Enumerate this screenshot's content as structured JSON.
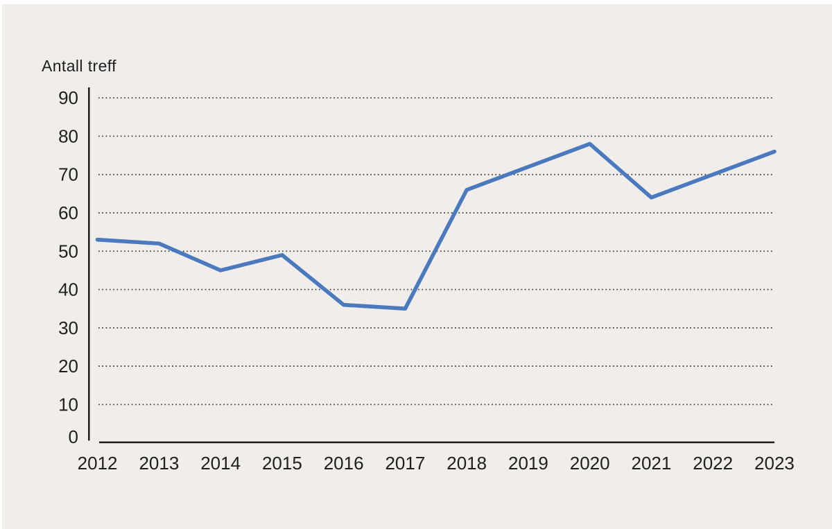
{
  "chart_data": {
    "type": "line",
    "title": "",
    "ylabel": "Antall treff",
    "xlabel": "",
    "categories": [
      "2012",
      "2013",
      "2014",
      "2015",
      "2016",
      "2017",
      "2018",
      "2019",
      "2020",
      "2021",
      "2022",
      "2023"
    ],
    "series": [
      {
        "name": "Antall treff",
        "values": [
          53,
          52,
          45,
          49,
          36,
          35,
          66,
          72,
          78,
          64,
          70,
          76
        ]
      }
    ],
    "ylim": [
      0,
      90
    ],
    "yticks": [
      0,
      10,
      20,
      30,
      40,
      50,
      60,
      70,
      80,
      90
    ],
    "grid": "horizontal-dotted",
    "legend": "none"
  },
  "colors": {
    "line": "#4b79bd",
    "panel_background": "#f0edeb",
    "axis": "#1c1c1a",
    "gridline": "#333333",
    "text": "#1f1f1d"
  }
}
